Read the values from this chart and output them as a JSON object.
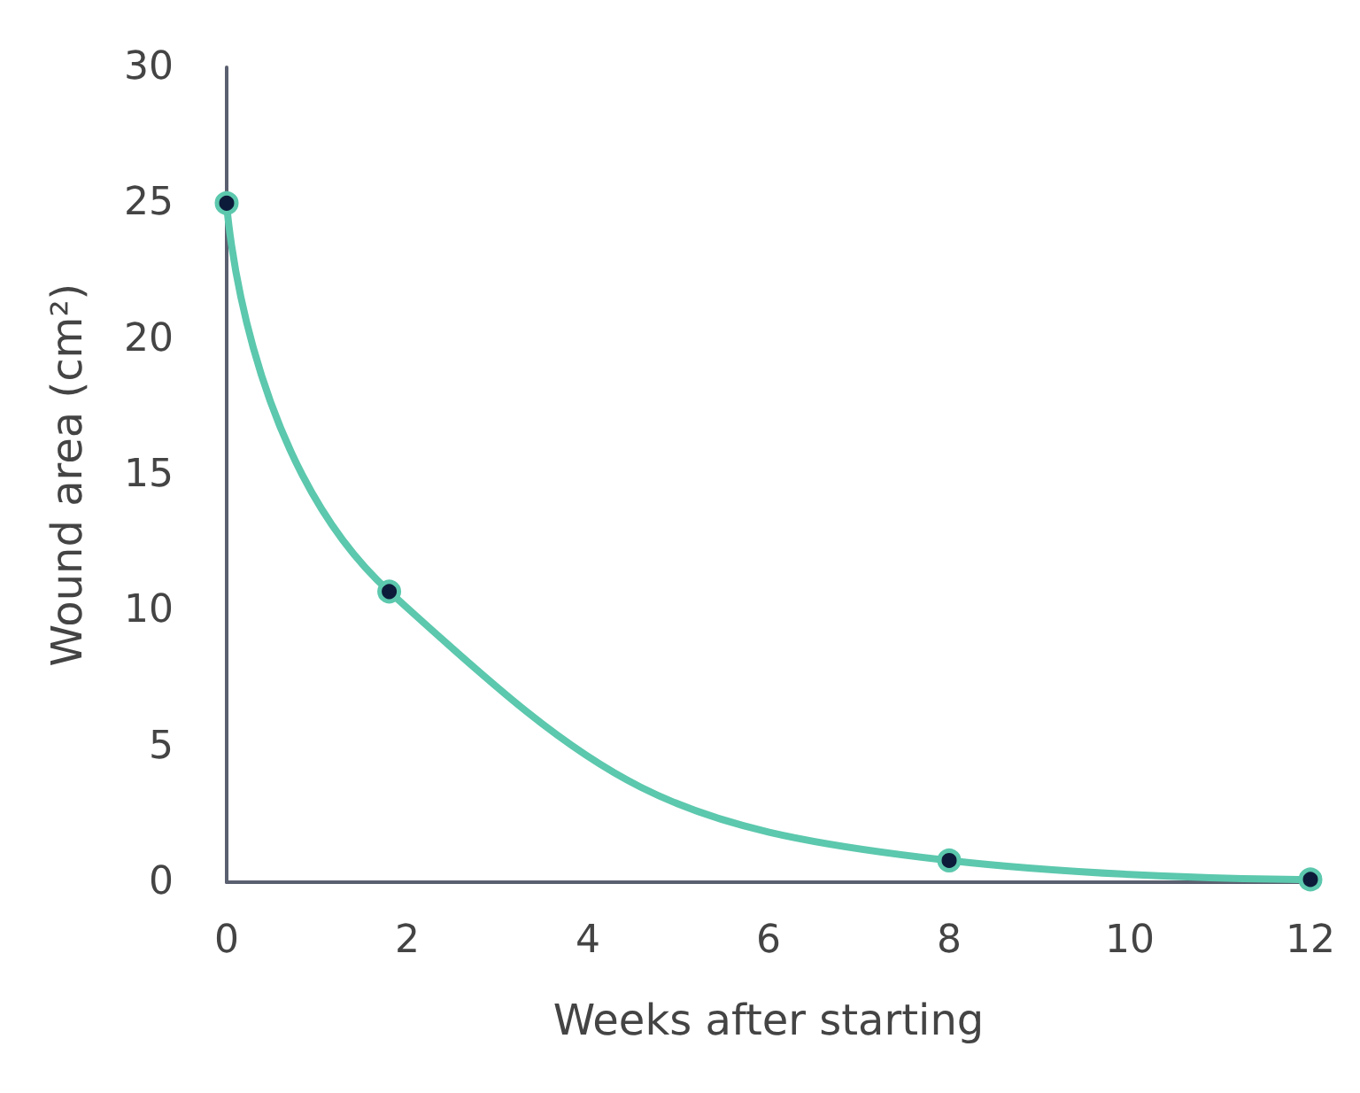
{
  "chart_data": {
    "type": "line",
    "xlabel": "Weeks after starting",
    "ylabel": "Wound area (cm²)",
    "x": [
      0,
      1.8,
      8,
      12
    ],
    "series": [
      {
        "color": "#5cc8ad",
        "values": [
          25,
          10.7,
          0.8,
          0.1
        ]
      }
    ],
    "xlim": [
      0,
      12
    ],
    "xticks": [
      0,
      2,
      4,
      6,
      8,
      10,
      12
    ],
    "ylim": [
      0,
      30
    ],
    "yticks": [
      0,
      5,
      10,
      15,
      20,
      25,
      30
    ],
    "grid": false,
    "marker": "circle",
    "line_style": "solid"
  }
}
